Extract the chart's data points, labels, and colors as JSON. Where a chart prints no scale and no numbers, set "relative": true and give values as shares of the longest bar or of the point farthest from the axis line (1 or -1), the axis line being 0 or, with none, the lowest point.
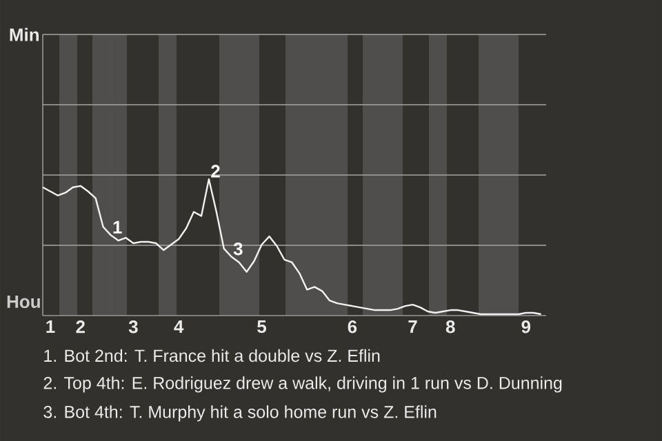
{
  "chart_data": {
    "type": "line",
    "relative": true,
    "categories": [
      null,
      "1",
      null,
      null,
      null,
      "2",
      null,
      null,
      null,
      null,
      null,
      null,
      "3",
      null,
      null,
      null,
      null,
      null,
      "4",
      null,
      null,
      null,
      null,
      null,
      null,
      null,
      null,
      null,
      null,
      "5",
      null,
      null,
      null,
      null,
      null,
      null,
      null,
      null,
      null,
      null,
      null,
      "6",
      null,
      null,
      null,
      null,
      null,
      null,
      null,
      "7",
      null,
      null,
      null,
      null,
      "8",
      null,
      null,
      null,
      null,
      null,
      null,
      null,
      null,
      null,
      "9",
      null,
      null
    ],
    "marker": "none",
    "line_style": "solid",
    "series": [
      {
        "color": "#f2f2f2",
        "values": [
          0.94,
          0.91,
          0.88,
          0.9,
          0.94,
          0.95,
          0.91,
          0.86,
          0.65,
          0.59,
          0.55,
          0.57,
          0.53,
          0.54,
          0.54,
          0.53,
          0.48,
          0.52,
          0.56,
          0.64,
          0.76,
          0.73,
          1,
          0.76,
          0.49,
          0.43,
          0.39,
          0.32,
          0.4,
          0.52,
          0.58,
          0.51,
          0.41,
          0.39,
          0.31,
          0.19,
          0.21,
          0.18,
          0.11,
          0.09,
          0.08,
          0.07,
          0.06,
          0.05,
          0.04,
          0.04,
          0.04,
          0.05,
          0.07,
          0.08,
          0.06,
          0.03,
          0.02,
          0.03,
          0.04,
          0.04,
          0.03,
          0.02,
          0.01,
          0.01,
          0.01,
          0.01,
          0.01,
          0.01,
          0.02,
          0.02,
          0.01
        ]
      }
    ],
    "ref_lines": [
      {
        "axis": "y",
        "value": 0.515,
        "color": "#a6a6a6"
      },
      {
        "axis": "y",
        "value": 1.03,
        "color": "#a6a6a6"
      },
      {
        "axis": "y",
        "value": 1.545,
        "color": "#a6a6a6"
      },
      {
        "axis": "y",
        "value": 2.06,
        "color": "#a6a6a6"
      }
    ],
    "annotations": [
      {
        "text": "1",
        "y": 0.59
      },
      {
        "text": "2",
        "y": 1
      },
      {
        "text": "3",
        "y": 0.43
      },
      "Min",
      "Hou",
      "1. Bot 2nd: T. France hit a double vs Z. Eflin",
      "2. Top 4th: E. Rodriguez drew a walk, driving in 1 run vs D. Dunning",
      "3. Bot 4th: T. Murphy hit a solo home run vs Z. Eflin"
    ]
  }
}
